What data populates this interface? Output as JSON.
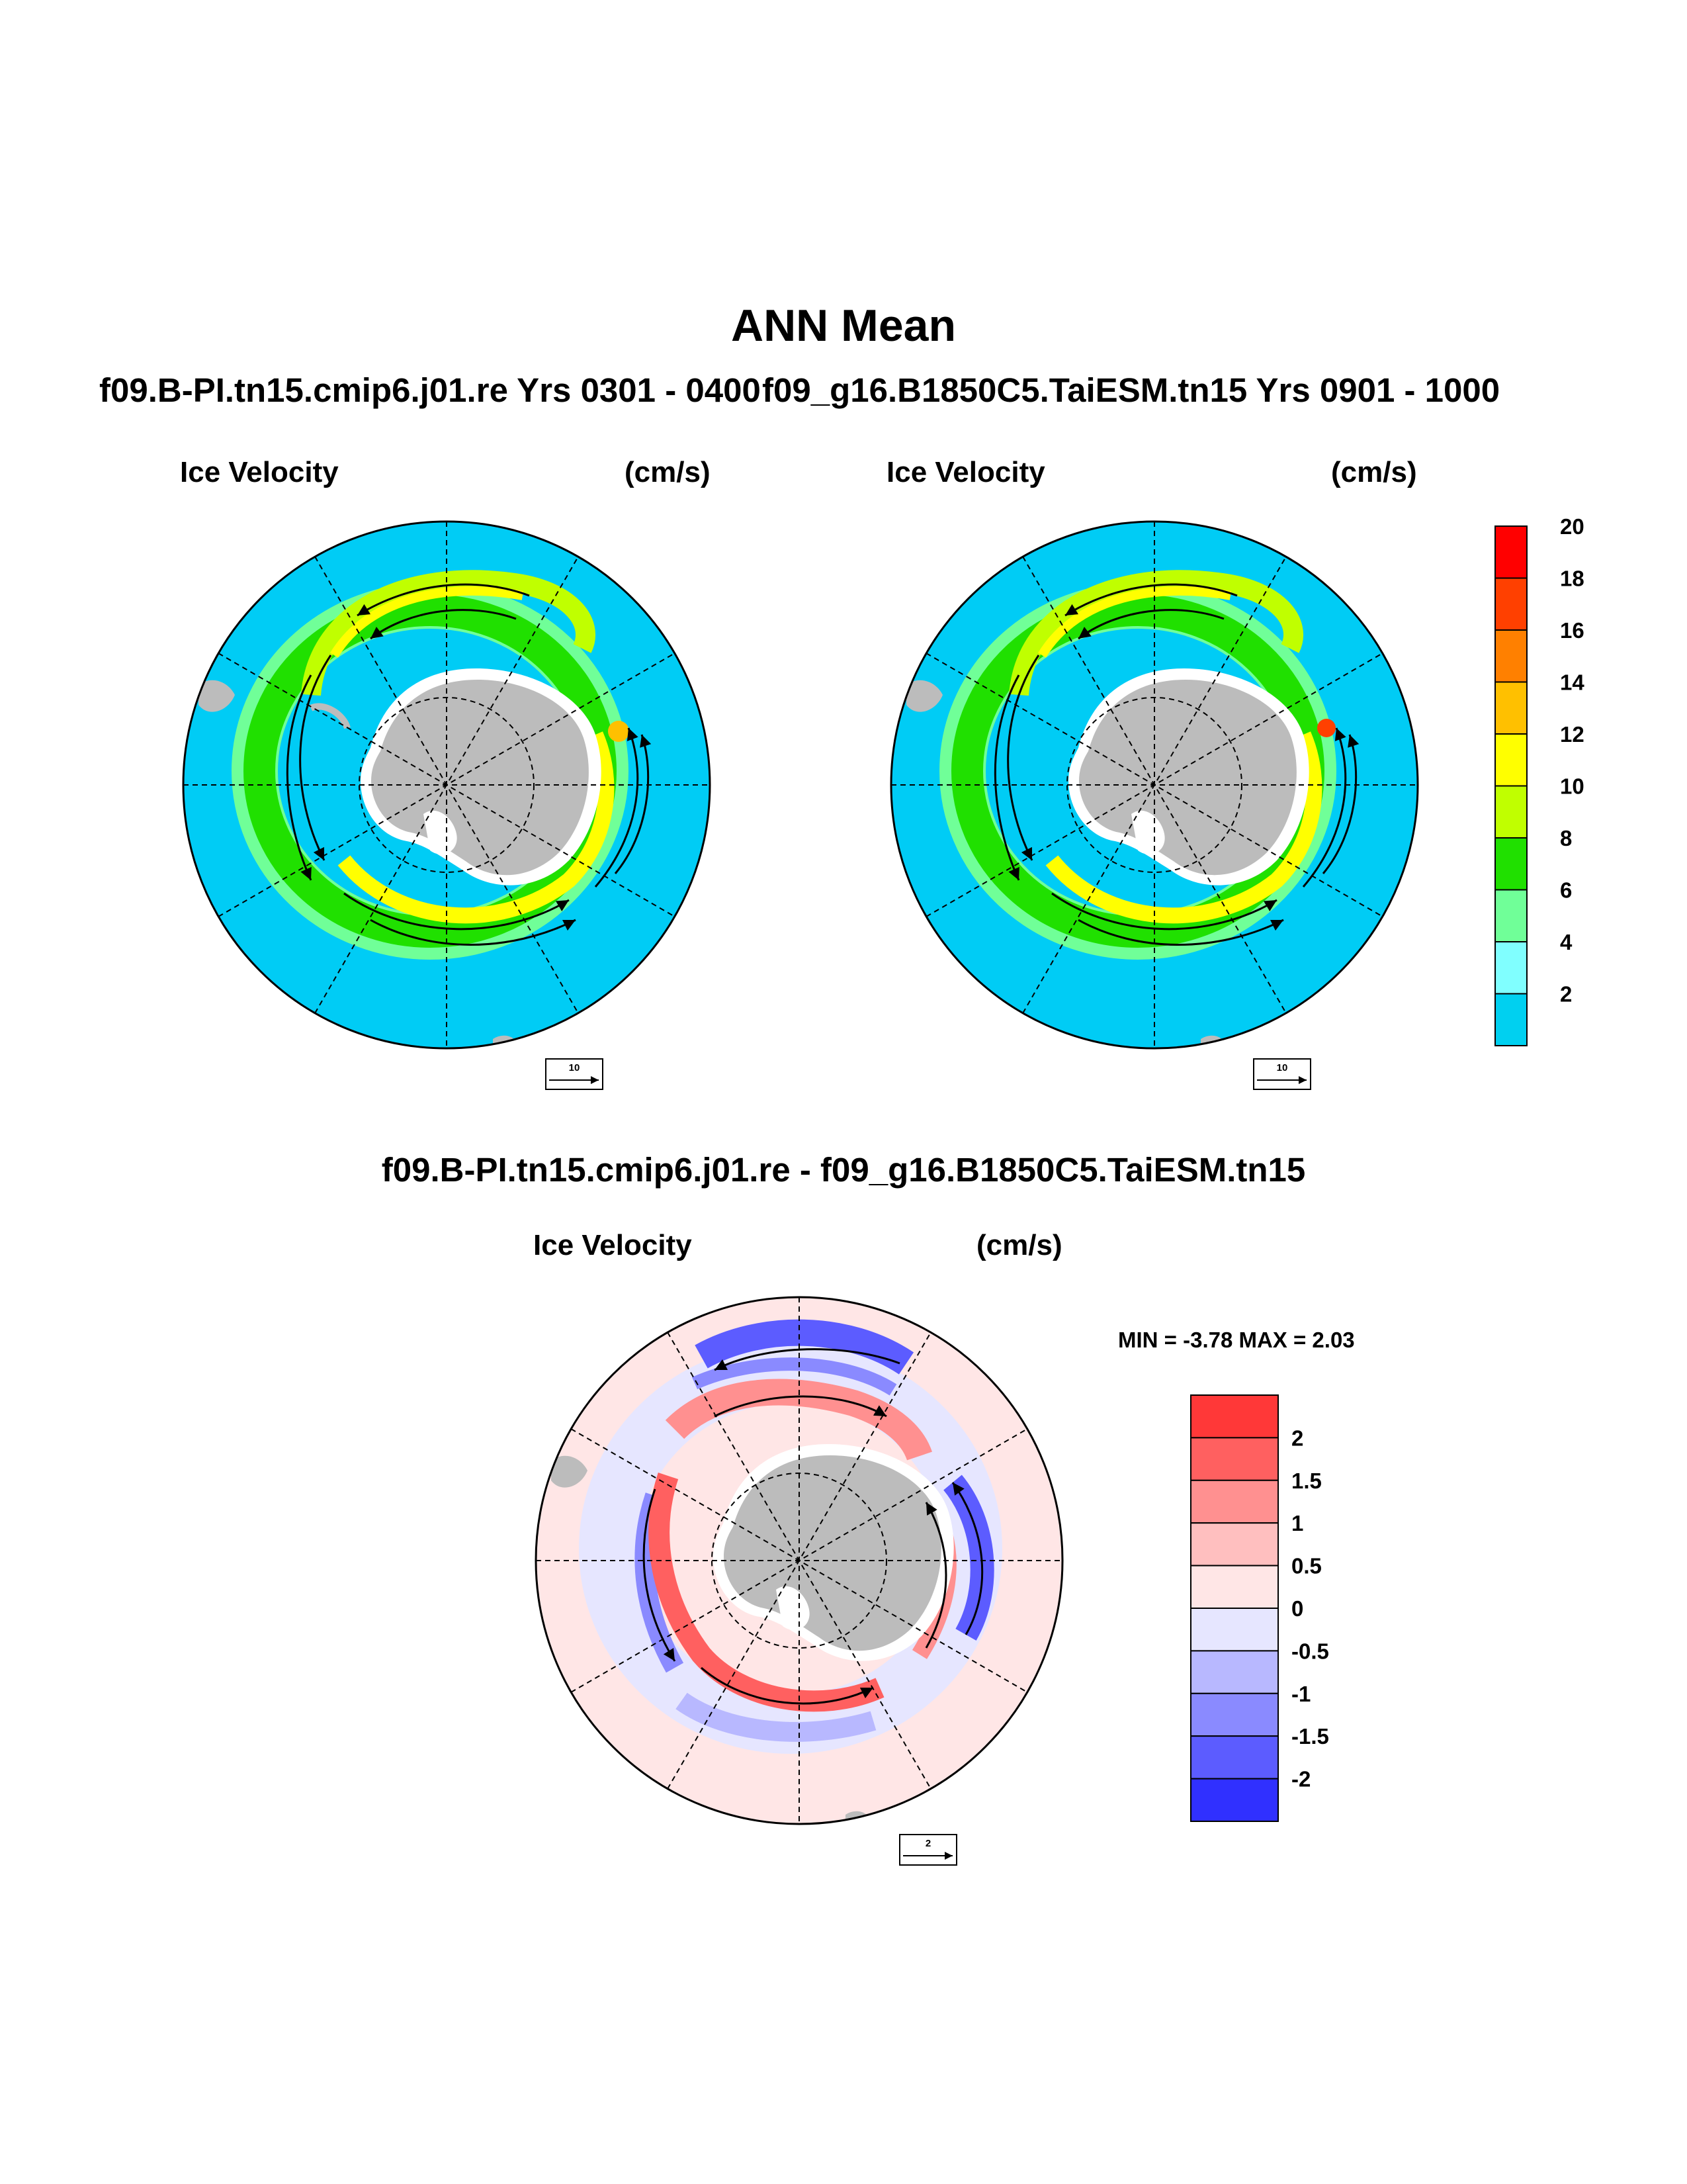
{
  "title": "ANN Mean",
  "panels": [
    {
      "run": "f09.B-PI.tn15.cmip6.j01.re  Yrs 0301 - 0400",
      "variable": "Ice Velocity",
      "units": "(cm/s)",
      "reference_vector": "10"
    },
    {
      "run": "f09_g16.B1850C5.TaiESM.tn15  Yrs 0901 - 1000",
      "variable": "Ice Velocity",
      "units": "(cm/s)",
      "reference_vector": "10"
    }
  ],
  "difference": {
    "title": "f09.B-PI.tn15.cmip6.j01.re - f09_g16.B1850C5.TaiESM.tn15",
    "variable": "Ice Velocity",
    "units": "(cm/s)",
    "minmax": "MIN =  -3.78 MAX =   2.03",
    "reference_vector": "2"
  },
  "colorbar_speed": {
    "labels": [
      "2",
      "4",
      "6",
      "8",
      "10",
      "12",
      "14",
      "16",
      "18",
      "20"
    ],
    "colors": [
      "#00d0f0",
      "#80ffff",
      "#70ff98",
      "#20e000",
      "#c0ff00",
      "#ffff00",
      "#ffc000",
      "#ff8000",
      "#ff4000",
      "#ff0000"
    ]
  },
  "colorbar_diff": {
    "labels": [
      "2",
      "1.5",
      "1",
      "0.5",
      "0",
      "-0.5",
      "-1",
      "-1.5",
      "-2"
    ],
    "colors": [
      "#ff3838",
      "#ff6060",
      "#ff9090",
      "#ffbfbf",
      "#ffe6e6",
      "#e6e6ff",
      "#b8b8ff",
      "#8a8aff",
      "#5c5cff",
      "#3030ff"
    ]
  },
  "map_colors": {
    "ocean_speed": "#00ccf5",
    "ocean_diff": "#ffe6e6",
    "land": "#bcbcbc",
    "coast_ice": "#ffffff"
  }
}
